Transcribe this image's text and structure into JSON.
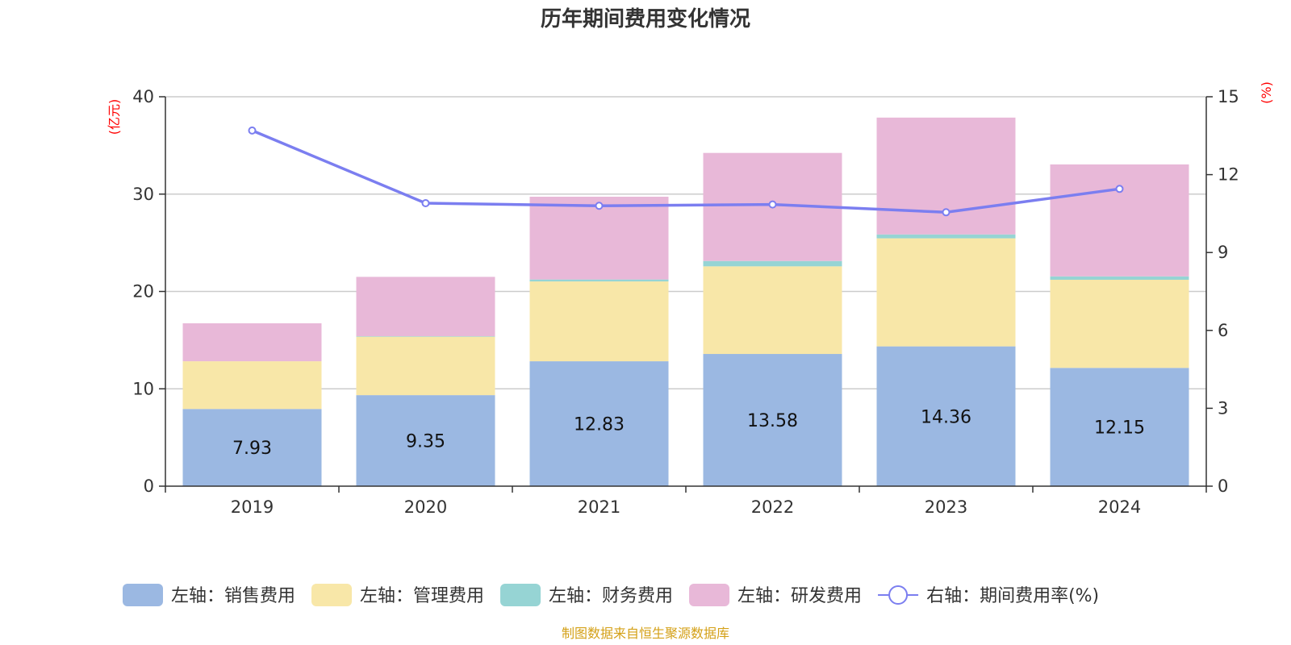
{
  "chart_data": {
    "type": "bar",
    "title": "历年期间费用变化情况",
    "categories": [
      "2019",
      "2020",
      "2021",
      "2022",
      "2023",
      "2024"
    ],
    "stacked": true,
    "left_axis": {
      "unit": "(亿元)",
      "ylim": [
        0,
        40
      ],
      "ticks": [
        "0",
        "10",
        "20",
        "30",
        "40"
      ]
    },
    "right_axis": {
      "unit": "(%)",
      "ylim": [
        0,
        15
      ],
      "ticks": [
        "0",
        "3",
        "6",
        "9",
        "12",
        "15"
      ]
    },
    "series": [
      {
        "name": "左轴：销售费用",
        "axis": "left",
        "type": "bar",
        "color": "#9bb8e2",
        "values": [
          7.93,
          9.35,
          12.83,
          13.58,
          14.36,
          12.15
        ],
        "show_labels": true
      },
      {
        "name": "左轴：管理费用",
        "axis": "left",
        "type": "bar",
        "color": "#f8e7a8",
        "values": [
          4.9,
          6.0,
          8.2,
          9.0,
          11.1,
          9.05
        ]
      },
      {
        "name": "左轴：财务费用",
        "axis": "left",
        "type": "bar",
        "color": "#96d4d4",
        "values": [
          0.0,
          0.05,
          0.2,
          0.55,
          0.4,
          0.35
        ]
      },
      {
        "name": "左轴：研发费用",
        "axis": "left",
        "type": "bar",
        "color": "#e8b8d8",
        "values": [
          3.9,
          6.1,
          8.5,
          11.1,
          12.0,
          11.5
        ]
      },
      {
        "name": "右轴：期间费用率(%)",
        "axis": "right",
        "type": "line",
        "color": "#7b7ef0",
        "values": [
          13.7,
          10.9,
          10.8,
          10.85,
          10.55,
          11.45
        ]
      }
    ],
    "grid": true,
    "legend_position": "bottom"
  },
  "source": "制图数据来自恒生聚源数据库"
}
